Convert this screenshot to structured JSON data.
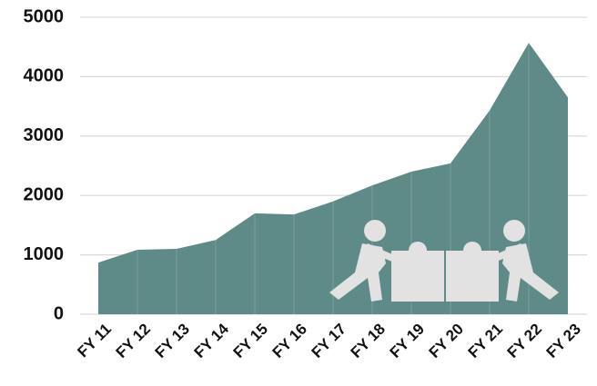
{
  "chart_data": {
    "type": "area",
    "categories": [
      "FY 11",
      "FY 12",
      "FY 13",
      "FY 14",
      "FY 15",
      "FY 16",
      "FY 17",
      "FY 18",
      "FY 19",
      "FY 20",
      "FY 21",
      "FY 22",
      "FY 23"
    ],
    "values": [
      870,
      1085,
      1100,
      1250,
      1700,
      1680,
      1900,
      2170,
      2400,
      2540,
      3430,
      4570,
      3650
    ],
    "color": "#5e8a87",
    "ylim": [
      0,
      5000
    ],
    "yticks": [
      0,
      1000,
      2000,
      3000,
      4000,
      5000
    ],
    "grid": true
  }
}
